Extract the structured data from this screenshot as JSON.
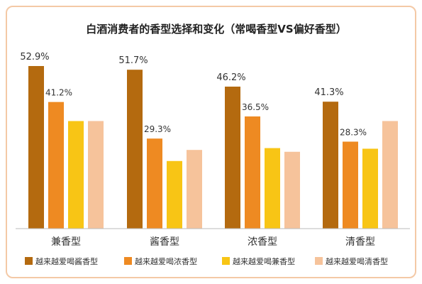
{
  "chart_data": {
    "type": "bar",
    "title": "白酒消费者的香型选择和变化（常喝香型VS偏好香型）",
    "xlabel": "",
    "ylabel": "",
    "ylim": [
      0,
      60
    ],
    "grid": false,
    "legend_position": "bottom",
    "categories": [
      "兼香型",
      "酱香型",
      "浓香型",
      "清香型"
    ],
    "series": [
      {
        "name": "越来越爱喝酱香型",
        "color": "#b46a0f",
        "values": [
          52.9,
          51.7,
          46.2,
          41.3
        ],
        "labels": [
          "52.9%",
          "51.7%",
          "46.2%",
          "41.3%"
        ]
      },
      {
        "name": "越来越爱喝浓香型",
        "color": "#ee8a22",
        "values": [
          41.2,
          29.3,
          36.5,
          28.3
        ],
        "labels": [
          "41.2%",
          "29.3%",
          "36.5%",
          "28.3%"
        ]
      },
      {
        "name": "越来越爱喝兼香型",
        "color": "#f8c515",
        "values": [
          35.0,
          22.0,
          26.2,
          26.0
        ],
        "labels": []
      },
      {
        "name": "越来越爱喝清香型",
        "color": "#f6c39b",
        "values": [
          35.0,
          25.6,
          25.0,
          35.0
        ],
        "labels": []
      }
    ]
  }
}
